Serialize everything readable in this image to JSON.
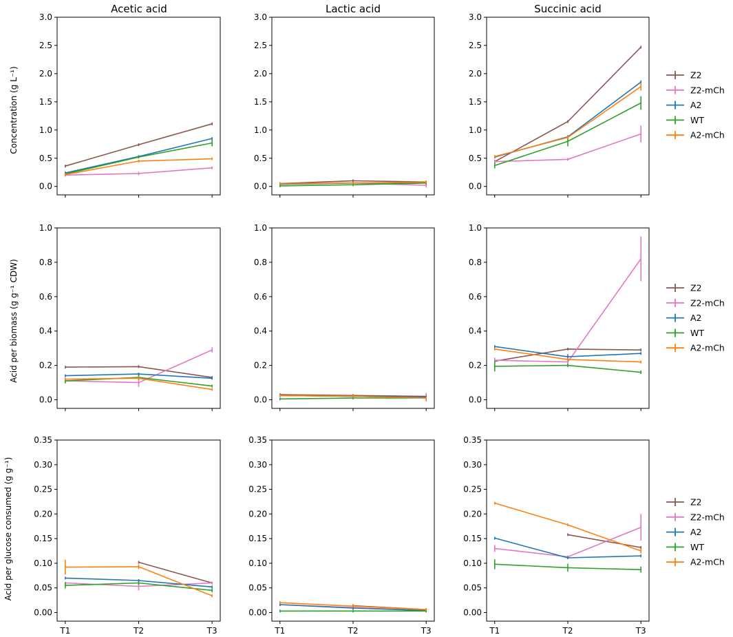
{
  "figure": {
    "column_titles": [
      "Acetic acid",
      "Lactic acid",
      "Succinic acid"
    ],
    "row_ylabels": [
      "Concentration (g L⁻¹)",
      "Acid per biomass (g g⁻¹ CDW)",
      "Acid per glucose consumed (g g⁻¹)"
    ],
    "x_ticks": [
      "T1",
      "T2",
      "T3"
    ],
    "legend_entries": [
      "Z2",
      "Z2-mCh",
      "A2",
      "WT",
      "A2-mCh"
    ]
  },
  "colors": {
    "Z2": "#8c564b",
    "Z2-mCh": "#e377c2",
    "A2": "#1f77b4",
    "WT": "#2ca02c",
    "A2-mCh": "#ff7f0e"
  },
  "chart_data": [
    {
      "type": "line",
      "row": 0,
      "col": 0,
      "title": "Acetic acid",
      "ylabel": "Concentration (g L⁻¹)",
      "ylim": [
        -0.15,
        3.0
      ],
      "yticks": [
        0.0,
        0.5,
        1.0,
        1.5,
        2.0,
        2.5,
        3.0
      ],
      "ytick_labels": [
        "0.0",
        "0.5",
        "1.0",
        "1.5",
        "2.0",
        "2.5",
        "3.0"
      ],
      "categories": [
        "T1",
        "T2",
        "T3"
      ],
      "series": [
        {
          "name": "Z2",
          "values": [
            0.36,
            0.74,
            1.11
          ],
          "errors": [
            0,
            0,
            0
          ]
        },
        {
          "name": "Z2-mCh",
          "values": [
            0.2,
            0.23,
            0.33
          ],
          "errors": [
            0.01,
            0.03,
            0.01
          ]
        },
        {
          "name": "A2",
          "values": [
            0.24,
            0.53,
            0.85
          ],
          "errors": [
            0,
            0,
            0
          ]
        },
        {
          "name": "WT",
          "values": [
            0.22,
            0.52,
            0.77
          ],
          "errors": [
            0.02,
            0,
            0.06
          ]
        },
        {
          "name": "A2-mCh",
          "values": [
            0.21,
            0.45,
            0.49
          ],
          "errors": [
            0.01,
            0.01,
            0
          ]
        }
      ]
    },
    {
      "type": "line",
      "row": 0,
      "col": 1,
      "title": "Lactic acid",
      "ylabel": "",
      "ylim": [
        -0.15,
        3.0
      ],
      "yticks": [
        0.0,
        0.5,
        1.0,
        1.5,
        2.0,
        2.5,
        3.0
      ],
      "ytick_labels": [
        "0.0",
        "0.5",
        "1.0",
        "1.5",
        "2.0",
        "2.5",
        "3.0"
      ],
      "categories": [
        "T1",
        "T2",
        "T3"
      ],
      "series": [
        {
          "name": "Z2",
          "values": [
            0.05,
            0.1,
            0.08
          ],
          "errors": [
            0,
            0,
            0
          ]
        },
        {
          "name": "Z2-mCh",
          "values": [
            0.04,
            0.06,
            0.02
          ],
          "errors": [
            0,
            0,
            0.04
          ]
        },
        {
          "name": "A2",
          "values": [
            0.04,
            0.06,
            0.07
          ],
          "errors": [
            0,
            0,
            0
          ]
        },
        {
          "name": "WT",
          "values": [
            0.01,
            0.03,
            0.06
          ],
          "errors": [
            0,
            0,
            0
          ]
        },
        {
          "name": "A2-mCh",
          "values": [
            0.05,
            0.06,
            0.08
          ],
          "errors": [
            0,
            0,
            0.01
          ]
        }
      ]
    },
    {
      "type": "line",
      "row": 0,
      "col": 2,
      "title": "Succinic acid",
      "ylabel": "",
      "ylim": [
        -0.15,
        3.0
      ],
      "yticks": [
        0.0,
        0.5,
        1.0,
        1.5,
        2.0,
        2.5,
        3.0
      ],
      "ytick_labels": [
        "0.0",
        "0.5",
        "1.0",
        "1.5",
        "2.0",
        "2.5",
        "3.0"
      ],
      "categories": [
        "T1",
        "T2",
        "T3"
      ],
      "series": [
        {
          "name": "Z2",
          "values": [
            0.44,
            1.15,
            2.47
          ],
          "errors": [
            0.03,
            0.02,
            0.02
          ]
        },
        {
          "name": "Z2-mCh",
          "values": [
            0.44,
            0.48,
            0.93
          ],
          "errors": [
            0.03,
            0,
            0.15
          ]
        },
        {
          "name": "A2",
          "values": [
            0.52,
            0.88,
            1.85
          ],
          "errors": [
            0.02,
            0.03,
            0.03
          ]
        },
        {
          "name": "WT",
          "values": [
            0.37,
            0.8,
            1.48
          ],
          "errors": [
            0.05,
            0.09,
            0.12
          ]
        },
        {
          "name": "A2-mCh",
          "values": [
            0.53,
            0.87,
            1.77
          ],
          "errors": [
            0.01,
            0.03,
            0.07
          ]
        }
      ]
    },
    {
      "type": "line",
      "row": 1,
      "col": 0,
      "title": "",
      "ylabel": "Acid per biomass (g g⁻¹ CDW)",
      "ylim": [
        -0.05,
        1.0
      ],
      "yticks": [
        0.0,
        0.2,
        0.4,
        0.6,
        0.8,
        1.0
      ],
      "ytick_labels": [
        "0.0",
        "0.2",
        "0.4",
        "0.6",
        "0.8",
        "1.0"
      ],
      "categories": [
        "T1",
        "T2",
        "T3"
      ],
      "series": [
        {
          "name": "Z2",
          "values": [
            0.19,
            0.193,
            0.13
          ],
          "errors": [
            0,
            0,
            0
          ]
        },
        {
          "name": "Z2-mCh",
          "values": [
            0.11,
            0.1,
            0.29
          ],
          "errors": [
            0.01,
            0.025,
            0.015
          ]
        },
        {
          "name": "A2",
          "values": [
            0.14,
            0.15,
            0.125
          ],
          "errors": [
            0,
            0,
            0
          ]
        },
        {
          "name": "WT",
          "values": [
            0.11,
            0.13,
            0.08
          ],
          "errors": [
            0.015,
            0.015,
            0
          ]
        },
        {
          "name": "A2-mCh",
          "values": [
            0.12,
            0.125,
            0.06
          ],
          "errors": [
            0,
            0.01,
            0
          ]
        }
      ]
    },
    {
      "type": "line",
      "row": 1,
      "col": 1,
      "title": "",
      "ylabel": "",
      "ylim": [
        -0.05,
        1.0
      ],
      "yticks": [
        0.0,
        0.2,
        0.4,
        0.6,
        0.8,
        1.0
      ],
      "ytick_labels": [
        "0.0",
        "0.2",
        "0.4",
        "0.6",
        "0.8",
        "1.0"
      ],
      "categories": [
        "T1",
        "T2",
        "T3"
      ],
      "series": [
        {
          "name": "Z2",
          "values": [
            0.03,
            0.025,
            0.02
          ],
          "errors": [
            0,
            0,
            0
          ]
        },
        {
          "name": "Z2-mCh",
          "values": [
            0.025,
            0.02,
            0.015
          ],
          "errors": [
            0,
            0,
            0.025
          ]
        },
        {
          "name": "A2",
          "values": [
            0.025,
            0.02,
            0.015
          ],
          "errors": [
            0,
            0,
            0
          ]
        },
        {
          "name": "WT",
          "values": [
            0.005,
            0.01,
            0.01
          ],
          "errors": [
            0,
            0,
            0
          ]
        },
        {
          "name": "A2-mCh",
          "values": [
            0.025,
            0.02,
            0.01
          ],
          "errors": [
            0,
            0,
            0
          ]
        }
      ]
    },
    {
      "type": "line",
      "row": 1,
      "col": 2,
      "title": "",
      "ylabel": "",
      "ylim": [
        -0.05,
        1.0
      ],
      "yticks": [
        0.0,
        0.2,
        0.4,
        0.6,
        0.8,
        1.0
      ],
      "ytick_labels": [
        "0.0",
        "0.2",
        "0.4",
        "0.6",
        "0.8",
        "1.0"
      ],
      "categories": [
        "T1",
        "T2",
        "T3"
      ],
      "series": [
        {
          "name": "Z2",
          "values": [
            0.225,
            0.295,
            0.29
          ],
          "errors": [
            0,
            0.008,
            0
          ]
        },
        {
          "name": "Z2-mCh",
          "values": [
            0.23,
            0.22,
            0.82
          ],
          "errors": [
            0.015,
            0.015,
            0.13
          ]
        },
        {
          "name": "A2",
          "values": [
            0.31,
            0.25,
            0.27
          ],
          "errors": [
            0,
            0.015,
            0
          ]
        },
        {
          "name": "WT",
          "values": [
            0.195,
            0.2,
            0.16
          ],
          "errors": [
            0.03,
            0.01,
            0.01
          ]
        },
        {
          "name": "A2-mCh",
          "values": [
            0.295,
            0.235,
            0.22
          ],
          "errors": [
            0,
            0,
            0
          ]
        }
      ]
    },
    {
      "type": "line",
      "row": 2,
      "col": 0,
      "title": "",
      "ylabel": "Acid per glucose consumed (g g⁻¹)",
      "ylim": [
        -0.0175,
        0.35
      ],
      "yticks": [
        0.0,
        0.05,
        0.1,
        0.15,
        0.2,
        0.25,
        0.3,
        0.35
      ],
      "ytick_labels": [
        "0.00",
        "0.05",
        "0.10",
        "0.15",
        "0.20",
        "0.25",
        "0.30",
        "0.35"
      ],
      "categories": [
        "T1",
        "T2",
        "T3"
      ],
      "series": [
        {
          "name": "Z2",
          "values": [
            null,
            0.102,
            0.06
          ],
          "errors": [
            0,
            0,
            0
          ]
        },
        {
          "name": "Z2-mCh",
          "values": [
            0.06,
            0.053,
            0.06
          ],
          "errors": [
            0,
            0.008,
            0
          ]
        },
        {
          "name": "A2",
          "values": [
            0.07,
            0.065,
            0.052
          ],
          "errors": [
            0,
            0,
            0
          ]
        },
        {
          "name": "WT",
          "values": [
            0.055,
            0.06,
            0.045
          ],
          "errors": [
            0.006,
            0.004,
            0.004
          ]
        },
        {
          "name": "A2-mCh",
          "values": [
            0.092,
            0.093,
            0.034
          ],
          "errors": [
            0.015,
            0.005,
            0
          ]
        }
      ]
    },
    {
      "type": "line",
      "row": 2,
      "col": 1,
      "title": "",
      "ylabel": "",
      "ylim": [
        -0.0175,
        0.35
      ],
      "yticks": [
        0.0,
        0.05,
        0.1,
        0.15,
        0.2,
        0.25,
        0.3,
        0.35
      ],
      "ytick_labels": [
        "0.00",
        "0.05",
        "0.10",
        "0.15",
        "0.20",
        "0.25",
        "0.30",
        "0.35"
      ],
      "categories": [
        "T1",
        "T2",
        "T3"
      ],
      "series": [
        {
          "name": "Z2",
          "values": [
            null,
            0.014,
            0.006
          ],
          "errors": [
            0,
            0,
            0
          ]
        },
        {
          "name": "Z2-mCh",
          "values": [
            0.016,
            0.01,
            0.004
          ],
          "errors": [
            0,
            0,
            0
          ]
        },
        {
          "name": "A2",
          "values": [
            0.016,
            0.009,
            0.004
          ],
          "errors": [
            0,
            0,
            0
          ]
        },
        {
          "name": "WT",
          "values": [
            0.003,
            0.003,
            0.003
          ],
          "errors": [
            0,
            0,
            0
          ]
        },
        {
          "name": "A2-mCh",
          "values": [
            0.02,
            0.013,
            0.006
          ],
          "errors": [
            0,
            0,
            0
          ]
        }
      ]
    },
    {
      "type": "line",
      "row": 2,
      "col": 2,
      "title": "",
      "ylabel": "",
      "ylim": [
        -0.0175,
        0.35
      ],
      "yticks": [
        0.0,
        0.05,
        0.1,
        0.15,
        0.2,
        0.25,
        0.3,
        0.35
      ],
      "ytick_labels": [
        "0.00",
        "0.05",
        "0.10",
        "0.15",
        "0.20",
        "0.25",
        "0.30",
        "0.35"
      ],
      "categories": [
        "T1",
        "T2",
        "T3"
      ],
      "series": [
        {
          "name": "Z2",
          "values": [
            null,
            0.158,
            0.132
          ],
          "errors": [
            0,
            0,
            0
          ]
        },
        {
          "name": "Z2-mCh",
          "values": [
            0.13,
            0.113,
            0.173
          ],
          "errors": [
            0.007,
            0,
            0.027
          ]
        },
        {
          "name": "A2",
          "values": [
            0.151,
            0.111,
            0.115
          ],
          "errors": [
            0,
            0,
            0
          ]
        },
        {
          "name": "WT",
          "values": [
            0.098,
            0.091,
            0.087
          ],
          "errors": [
            0.01,
            0.008,
            0.006
          ]
        },
        {
          "name": "A2-mCh",
          "values": [
            0.222,
            0.178,
            0.125
          ],
          "errors": [
            0,
            0,
            0.005
          ]
        }
      ]
    }
  ]
}
